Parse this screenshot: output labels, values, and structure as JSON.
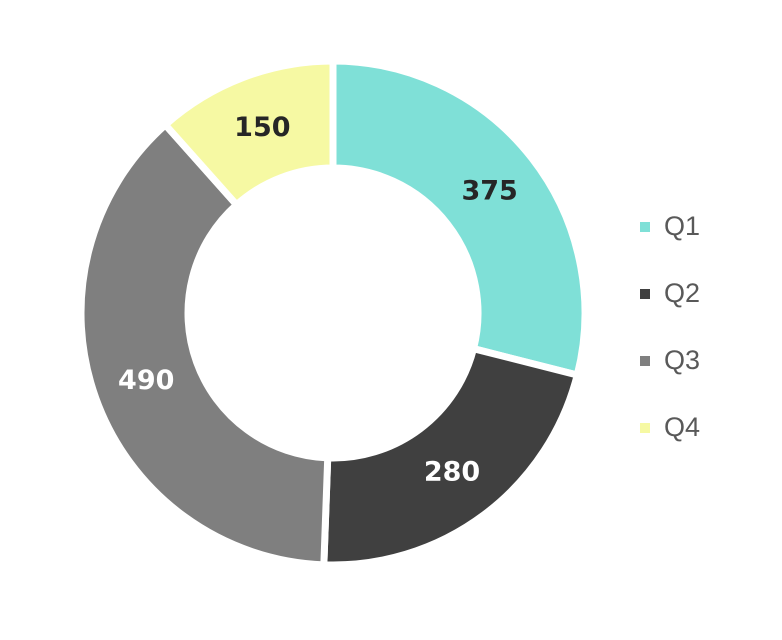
{
  "chart_data": {
    "type": "pie",
    "style": "donut",
    "categories": [
      "Q1",
      "Q2",
      "Q3",
      "Q4"
    ],
    "values": [
      375,
      280,
      490,
      150
    ],
    "colors": [
      "#7fe0d7",
      "#404040",
      "#7f7f7f",
      "#f6f9a3"
    ],
    "label_colors": [
      "#262626",
      "#ffffff",
      "#ffffff",
      "#262626"
    ],
    "data_labels": [
      "375",
      "280",
      "490",
      "150"
    ],
    "legend_position": "right",
    "title": ""
  }
}
